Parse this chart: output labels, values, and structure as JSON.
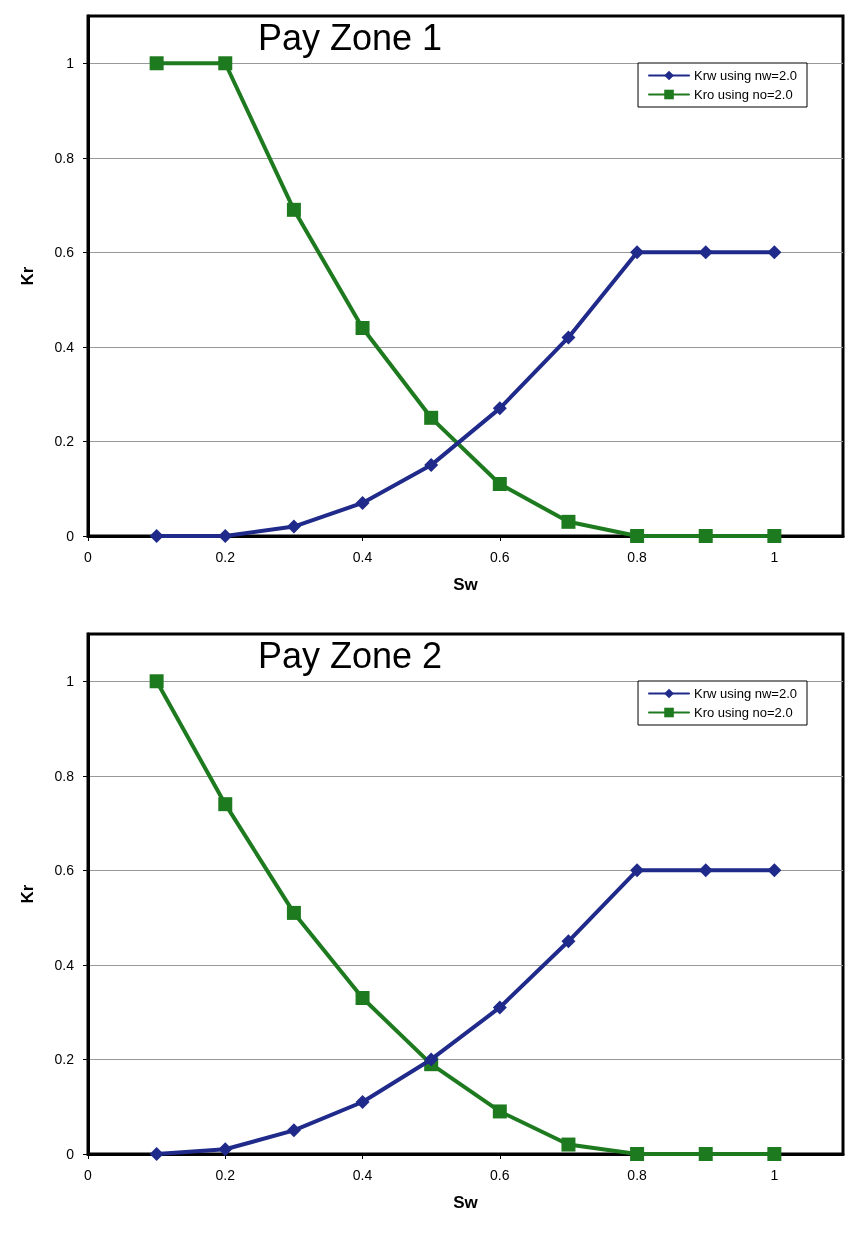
{
  "chart_data": [
    {
      "type": "line",
      "title": "Pay Zone 1",
      "xlabel": "Sw",
      "ylabel": "Kr",
      "xlim": [
        0,
        1.1
      ],
      "xticks": [
        0,
        0.2,
        0.4,
        0.6,
        0.8,
        1
      ],
      "ylim": [
        0,
        1.1
      ],
      "yticks": [
        0,
        0.2,
        0.4,
        0.6,
        0.8,
        1
      ],
      "grid": "y",
      "legend": "top right",
      "x": [
        0.1,
        0.2,
        0.3,
        0.4,
        0.5,
        0.6,
        0.7,
        0.8,
        0.9,
        1
      ],
      "series": [
        {
          "name": "Krw using nw=2.0",
          "color": "#1f2a8a",
          "marker": "diamond",
          "values": [
            0,
            0,
            0.02,
            0.07,
            0.15,
            0.27,
            0.42,
            0.6,
            0.6,
            0.6
          ]
        },
        {
          "name": "Kro using no=2.0",
          "color": "#1e7a1e",
          "marker": "square",
          "values": [
            1,
            1,
            0.69,
            0.44,
            0.25,
            0.11,
            0.03,
            0,
            0,
            0
          ]
        }
      ]
    },
    {
      "type": "line",
      "title": "Pay Zone 2",
      "xlabel": "Sw",
      "ylabel": "Kr",
      "xlim": [
        0,
        1.1
      ],
      "xticks": [
        0,
        0.2,
        0.4,
        0.6,
        0.8,
        1
      ],
      "ylim": [
        0,
        1.1
      ],
      "yticks": [
        0,
        0.2,
        0.4,
        0.6,
        0.8,
        1
      ],
      "grid": "y",
      "legend": "top right",
      "x": [
        0.1,
        0.2,
        0.3,
        0.4,
        0.5,
        0.6,
        0.7,
        0.8,
        0.9,
        1
      ],
      "series": [
        {
          "name": "Krw using nw=2.0",
          "color": "#1f2a8a",
          "marker": "diamond",
          "values": [
            0,
            0.01,
            0.05,
            0.11,
            0.2,
            0.31,
            0.45,
            0.6,
            0.6,
            0.6
          ]
        },
        {
          "name": "Kro using no=2.0",
          "color": "#1e7a1e",
          "marker": "square",
          "values": [
            1,
            0.74,
            0.51,
            0.33,
            0.19,
            0.09,
            0.02,
            0,
            0,
            0
          ]
        }
      ]
    }
  ]
}
